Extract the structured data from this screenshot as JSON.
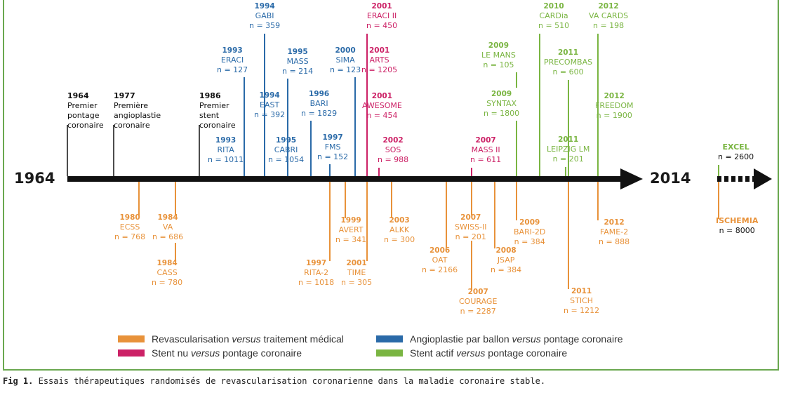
{
  "timeline": {
    "start_label": "1964",
    "end_label": "2014"
  },
  "colors": {
    "axis": "#111111",
    "orange": "#e8923a",
    "blue": "#2a6aa8",
    "red": "#cc2166",
    "green": "#7ab542",
    "black": "#111111",
    "frame": "#6aa84f"
  },
  "events": [
    {
      "id": "e1964",
      "color": "black",
      "year": "1964",
      "lines": [
        "Premier",
        "pontage",
        "coronaire"
      ]
    },
    {
      "id": "e1977",
      "color": "black",
      "year": "1977",
      "lines": [
        "Première",
        "angioplastie",
        "coronaire"
      ]
    },
    {
      "id": "e1986",
      "color": "black",
      "year": "1986",
      "lines": [
        "Premier",
        "stent",
        "coronaire"
      ]
    },
    {
      "id": "eraci",
      "color": "blue",
      "year": "1993",
      "title": "ERACI",
      "n": "n = 127"
    },
    {
      "id": "rita",
      "color": "blue",
      "year": "1993",
      "title": "RITA",
      "n": "n = 1011"
    },
    {
      "id": "gabi",
      "color": "blue",
      "year": "1994",
      "title": "GABI",
      "n": "n = 359"
    },
    {
      "id": "east",
      "color": "blue",
      "year": "1994",
      "title": "EAST",
      "n": "n = 392"
    },
    {
      "id": "mass",
      "color": "blue",
      "year": "1995",
      "title": "MASS",
      "n": "n = 214"
    },
    {
      "id": "cabri",
      "color": "blue",
      "year": "1995",
      "title": "CABRI",
      "n": "n = 1054"
    },
    {
      "id": "bari",
      "color": "blue",
      "year": "1996",
      "title": "BARI",
      "n": "n = 1829"
    },
    {
      "id": "fms",
      "color": "blue",
      "year": "1997",
      "title": "FMS",
      "n": "n = 152"
    },
    {
      "id": "sima",
      "color": "blue",
      "year": "2000",
      "title": "SIMA",
      "n": "n = 123"
    },
    {
      "id": "eraci2",
      "color": "red",
      "year": "2001",
      "title": "ERACI II",
      "n": "n = 450"
    },
    {
      "id": "arts",
      "color": "red",
      "year": "2001",
      "title": "ARTS",
      "n": "n = 1205"
    },
    {
      "id": "awesome",
      "color": "red",
      "year": "2001",
      "title": "AWESOME",
      "n": "n = 454"
    },
    {
      "id": "sos",
      "color": "red",
      "year": "2002",
      "title": "SOS",
      "n": "n = 988"
    },
    {
      "id": "mass2",
      "color": "red",
      "year": "2007",
      "title": "MASS II",
      "n": "n = 611"
    },
    {
      "id": "lemans",
      "color": "green",
      "year": "2009",
      "title": "LE MANS",
      "n": "n = 105"
    },
    {
      "id": "syntax",
      "color": "green",
      "year": "2009",
      "title": "SYNTAX",
      "n": "n = 1800"
    },
    {
      "id": "cardia",
      "color": "green",
      "year": "2010",
      "title": "CARDia",
      "n": "n = 510"
    },
    {
      "id": "precombas",
      "color": "green",
      "year": "2011",
      "title": "PRECOMBAS",
      "n": "n = 600"
    },
    {
      "id": "leipzig",
      "color": "green",
      "year": "2011",
      "title": "LEIPZIG LM",
      "n": "n = 201"
    },
    {
      "id": "vacards",
      "color": "green",
      "year": "2012",
      "title": "VA CARDS",
      "n": "n = 198"
    },
    {
      "id": "freedom",
      "color": "green",
      "year": "2012",
      "title": "FREEDOM",
      "n": "n = 1900"
    },
    {
      "id": "excel",
      "color": "green",
      "year": "",
      "title": "EXCEL",
      "n": "n = 2600"
    },
    {
      "id": "ecss",
      "color": "orange",
      "year": "1980",
      "title": "ECSS",
      "n": "n = 768"
    },
    {
      "id": "va",
      "color": "orange",
      "year": "1984",
      "title": "VA",
      "n": "n = 686"
    },
    {
      "id": "cass",
      "color": "orange",
      "year": "1984",
      "title": "CASS",
      "n": "n = 780"
    },
    {
      "id": "rita2",
      "color": "orange",
      "year": "1997",
      "title": "RITA-2",
      "n": "n = 1018"
    },
    {
      "id": "avert",
      "color": "orange",
      "year": "1999",
      "title": "AVERT",
      "n": "n = 341"
    },
    {
      "id": "time",
      "color": "orange",
      "year": "2001",
      "title": "TIME",
      "n": "n = 305"
    },
    {
      "id": "alkk",
      "color": "orange",
      "year": "2003",
      "title": "ALKK",
      "n": "n = 300"
    },
    {
      "id": "oat",
      "color": "orange",
      "year": "2006",
      "title": "OAT",
      "n": "n = 2166"
    },
    {
      "id": "swiss2",
      "color": "orange",
      "year": "2007",
      "title": "SWISS-II",
      "n": "n = 201"
    },
    {
      "id": "courage",
      "color": "orange",
      "year": "2007",
      "title": "COURAGE",
      "n": "n = 2287"
    },
    {
      "id": "jsap",
      "color": "orange",
      "year": "2008",
      "title": "JSAP",
      "n": "n = 384"
    },
    {
      "id": "bari2d",
      "color": "orange",
      "year": "2009",
      "title": "BARI-2D",
      "n": "n = 384"
    },
    {
      "id": "stich",
      "color": "orange",
      "year": "2011",
      "title": "STICH",
      "n": "n = 1212"
    },
    {
      "id": "fame2",
      "color": "orange",
      "year": "2012",
      "title": "FAME-2",
      "n": "n = 888"
    },
    {
      "id": "ischemia",
      "color": "orange",
      "year": "",
      "title": "ISCHEMIA",
      "n": "n = 8000"
    }
  ],
  "legend": {
    "orange": {
      "pre": "Revascularisation ",
      "it": "versus",
      "post": " traitement médical"
    },
    "blue": {
      "pre": "Angioplastie par ballon ",
      "it": "versus",
      "post": " pontage coronaire"
    },
    "red": {
      "pre": "Stent nu ",
      "it": "versus",
      "post": " pontage coronaire"
    },
    "green": {
      "pre": "Stent actif ",
      "it": "versus",
      "post": " pontage coronaire"
    }
  },
  "caption": {
    "label": "Fig 1.",
    "text": "Essais thérapeutiques randomisés de revascularisation coronarienne dans la maladie coronaire stable."
  }
}
